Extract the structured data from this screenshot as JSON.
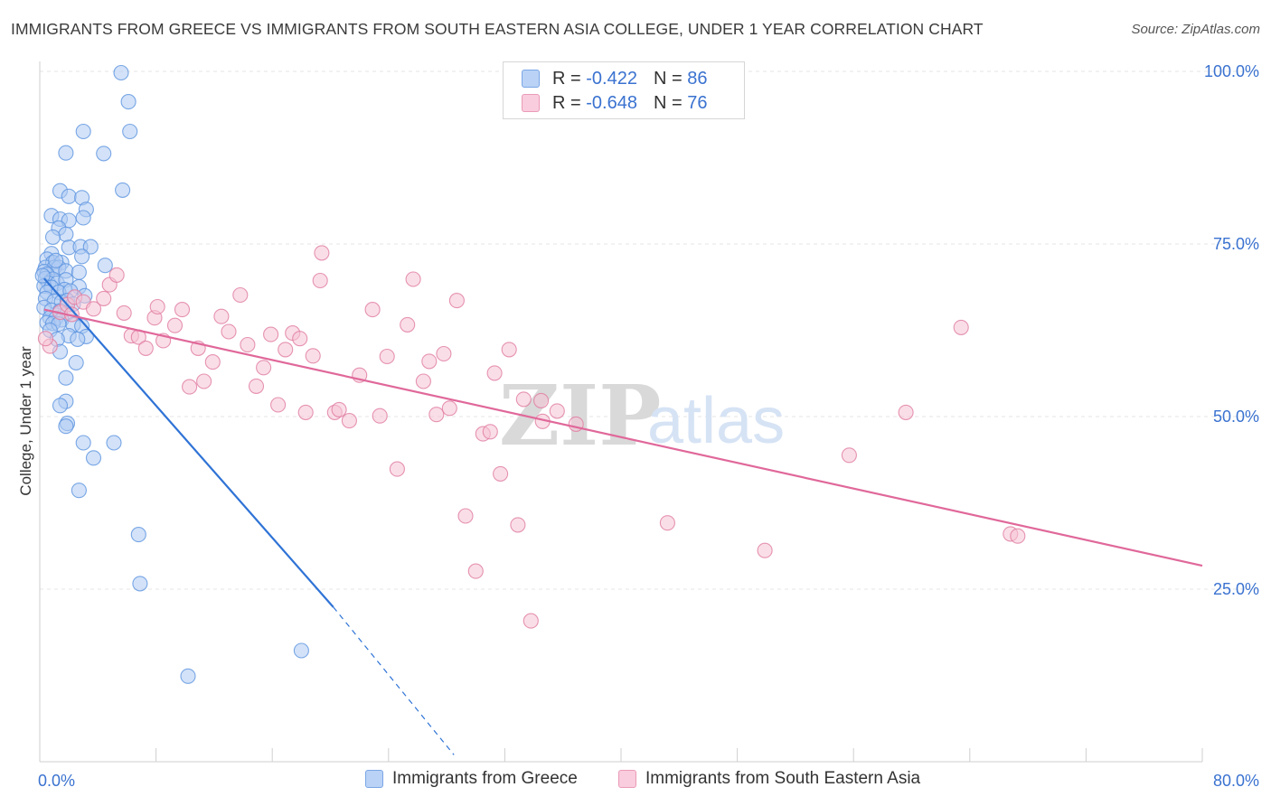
{
  "title": "IMMIGRANTS FROM GREECE VS IMMIGRANTS FROM SOUTH EASTERN ASIA COLLEGE, UNDER 1 YEAR CORRELATION CHART",
  "source": "Source: ZipAtlas.com",
  "watermark": {
    "zip": "ZIP",
    "atlas": "atlas"
  },
  "legend": {
    "r_label": "R =",
    "n_label": "N =",
    "rows": [
      {
        "r": "-0.422",
        "n": "86",
        "color": "#5b93e0"
      },
      {
        "r": "-0.648",
        "n": "76",
        "color": "#e07aa0"
      }
    ]
  },
  "bottom_legend": [
    "Immigrants from Greece",
    "Immigrants from South Eastern Asia"
  ],
  "chart_data": {
    "type": "scatter",
    "title": "IMMIGRANTS FROM GREECE VS IMMIGRANTS FROM SOUTH EASTERN ASIA COLLEGE, UNDER 1 YEAR CORRELATION CHART",
    "xlabel": "",
    "ylabel": "College, Under 1 year",
    "xlim": [
      0,
      80
    ],
    "ylim": [
      0,
      102
    ],
    "x_tick_labels": [
      "0.0%",
      "80.0%"
    ],
    "y_tick_labels": [
      "25.0%",
      "50.0%",
      "75.0%",
      "100.0%"
    ],
    "y_ticks": [
      25,
      50,
      75,
      100
    ],
    "grid": true,
    "legend_position": "top-center",
    "series": [
      {
        "name": "Immigrants from Greece",
        "color": "#5b93e0",
        "fill": "#aecbf3",
        "trend": {
          "x": [
            0.3,
            20.2
          ],
          "y": [
            70.0,
            22.4
          ]
        },
        "trend_dashed": {
          "x": [
            20.2,
            28.5
          ],
          "y": [
            22.4,
            1.0
          ]
        },
        "points": [
          [
            5.6,
            99.8
          ],
          [
            6.1,
            95.6
          ],
          [
            6.2,
            91.3
          ],
          [
            3.0,
            91.3
          ],
          [
            1.8,
            88.2
          ],
          [
            4.4,
            88.1
          ],
          [
            1.4,
            82.7
          ],
          [
            5.7,
            82.8
          ],
          [
            2.0,
            81.9
          ],
          [
            2.9,
            81.7
          ],
          [
            3.2,
            80.0
          ],
          [
            0.8,
            79.1
          ],
          [
            1.4,
            78.6
          ],
          [
            2.0,
            78.4
          ],
          [
            3.0,
            78.8
          ],
          [
            1.3,
            77.3
          ],
          [
            1.8,
            76.4
          ],
          [
            0.9,
            76.0
          ],
          [
            2.0,
            74.5
          ],
          [
            2.8,
            74.6
          ],
          [
            3.5,
            74.6
          ],
          [
            0.8,
            73.6
          ],
          [
            2.9,
            73.2
          ],
          [
            0.5,
            72.8
          ],
          [
            0.9,
            72.3
          ],
          [
            1.5,
            72.3
          ],
          [
            0.4,
            71.6
          ],
          [
            1.0,
            71.6
          ],
          [
            1.3,
            71.6
          ],
          [
            4.5,
            71.9
          ],
          [
            0.3,
            71.0
          ],
          [
            0.5,
            70.6
          ],
          [
            1.8,
            71.1
          ],
          [
            2.7,
            70.9
          ],
          [
            0.4,
            70.0
          ],
          [
            0.9,
            69.9
          ],
          [
            0.6,
            69.3
          ],
          [
            1.2,
            69.3
          ],
          [
            1.8,
            69.8
          ],
          [
            0.3,
            68.9
          ],
          [
            0.8,
            68.7
          ],
          [
            1.7,
            68.4
          ],
          [
            2.7,
            68.8
          ],
          [
            0.5,
            68.0
          ],
          [
            1.3,
            68.0
          ],
          [
            2.1,
            68.2
          ],
          [
            0.4,
            67.1
          ],
          [
            1.0,
            66.7
          ],
          [
            1.5,
            66.6
          ],
          [
            1.9,
            66.8
          ],
          [
            0.3,
            65.8
          ],
          [
            0.8,
            65.4
          ],
          [
            1.4,
            65.3
          ],
          [
            1.9,
            65.0
          ],
          [
            0.7,
            64.3
          ],
          [
            1.1,
            64.2
          ],
          [
            1.5,
            64.0
          ],
          [
            0.5,
            63.6
          ],
          [
            0.9,
            63.5
          ],
          [
            1.3,
            63.4
          ],
          [
            2.3,
            63.3
          ],
          [
            2.9,
            63.1
          ],
          [
            0.7,
            62.5
          ],
          [
            2.0,
            61.7
          ],
          [
            3.2,
            61.6
          ],
          [
            1.2,
            61.2
          ],
          [
            2.6,
            61.2
          ],
          [
            1.4,
            59.4
          ],
          [
            2.5,
            57.8
          ],
          [
            1.8,
            55.6
          ],
          [
            1.8,
            52.2
          ],
          [
            1.4,
            51.6
          ],
          [
            1.9,
            49.0
          ],
          [
            1.8,
            48.6
          ],
          [
            3.0,
            46.2
          ],
          [
            5.1,
            46.2
          ],
          [
            3.7,
            44.0
          ],
          [
            2.7,
            39.3
          ],
          [
            6.8,
            32.9
          ],
          [
            6.9,
            25.8
          ],
          [
            18.0,
            16.1
          ],
          [
            10.2,
            12.4
          ],
          [
            2.3,
            66.3
          ],
          [
            3.1,
            67.5
          ],
          [
            0.2,
            70.4
          ],
          [
            1.1,
            72.6
          ]
        ]
      },
      {
        "name": "Immigrants from South Eastern Asia",
        "color": "#e07aa0",
        "fill": "#f6c2d4",
        "trend": {
          "x": [
            0.3,
            80.0
          ],
          "y": [
            65.5,
            28.4
          ]
        },
        "points": [
          [
            0.7,
            60.2
          ],
          [
            1.4,
            65.1
          ],
          [
            1.9,
            66.2
          ],
          [
            2.4,
            67.3
          ],
          [
            3.0,
            66.6
          ],
          [
            3.7,
            65.6
          ],
          [
            4.4,
            67.1
          ],
          [
            4.8,
            69.1
          ],
          [
            5.3,
            70.5
          ],
          [
            5.8,
            65.0
          ],
          [
            6.3,
            61.7
          ],
          [
            6.8,
            61.5
          ],
          [
            7.3,
            59.9
          ],
          [
            7.9,
            64.3
          ],
          [
            8.5,
            61.0
          ],
          [
            9.3,
            63.2
          ],
          [
            9.8,
            65.5
          ],
          [
            10.3,
            54.3
          ],
          [
            10.9,
            59.9
          ],
          [
            11.3,
            55.1
          ],
          [
            11.9,
            57.9
          ],
          [
            12.5,
            64.5
          ],
          [
            13.0,
            62.3
          ],
          [
            13.8,
            67.6
          ],
          [
            14.3,
            60.4
          ],
          [
            14.9,
            54.4
          ],
          [
            15.4,
            57.1
          ],
          [
            15.9,
            61.9
          ],
          [
            16.4,
            51.7
          ],
          [
            16.9,
            59.7
          ],
          [
            17.4,
            62.1
          ],
          [
            17.9,
            61.3
          ],
          [
            18.3,
            50.6
          ],
          [
            18.8,
            58.8
          ],
          [
            19.3,
            69.7
          ],
          [
            19.4,
            73.7
          ],
          [
            20.3,
            50.6
          ],
          [
            20.6,
            51.0
          ],
          [
            21.3,
            49.4
          ],
          [
            22.0,
            56.0
          ],
          [
            22.9,
            65.5
          ],
          [
            23.4,
            50.1
          ],
          [
            23.9,
            58.7
          ],
          [
            24.6,
            42.4
          ],
          [
            25.3,
            63.3
          ],
          [
            25.7,
            69.9
          ],
          [
            26.4,
            55.1
          ],
          [
            26.8,
            58.0
          ],
          [
            27.3,
            50.3
          ],
          [
            27.8,
            59.1
          ],
          [
            28.2,
            51.2
          ],
          [
            28.7,
            66.8
          ],
          [
            29.3,
            35.6
          ],
          [
            30.0,
            27.6
          ],
          [
            30.5,
            47.5
          ],
          [
            31.0,
            47.8
          ],
          [
            31.3,
            56.3
          ],
          [
            31.7,
            41.7
          ],
          [
            32.3,
            59.7
          ],
          [
            32.9,
            34.3
          ],
          [
            33.3,
            52.5
          ],
          [
            33.8,
            20.4
          ],
          [
            34.5,
            52.3
          ],
          [
            34.6,
            49.3
          ],
          [
            35.6,
            50.8
          ],
          [
            36.9,
            48.9
          ],
          [
            43.2,
            34.6
          ],
          [
            49.9,
            30.6
          ],
          [
            55.7,
            44.4
          ],
          [
            59.6,
            50.6
          ],
          [
            63.4,
            62.9
          ],
          [
            66.8,
            33.0
          ],
          [
            67.3,
            32.7
          ],
          [
            2.2,
            64.8
          ],
          [
            0.4,
            61.3
          ],
          [
            8.1,
            65.9
          ]
        ]
      }
    ]
  }
}
